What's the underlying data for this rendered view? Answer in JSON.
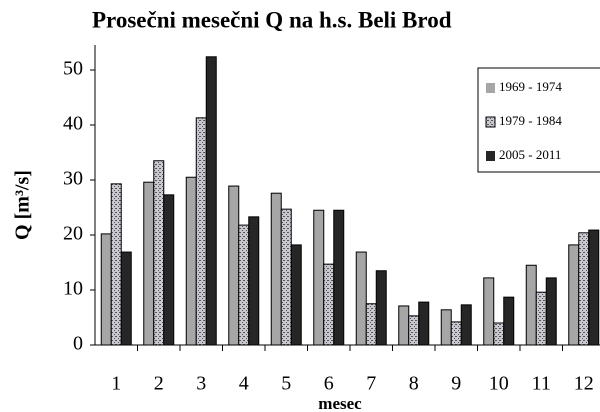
{
  "chart_data": {
    "type": "bar",
    "title": "Prosečni mesečni Q na h.s. Beli Brod",
    "x_label": "mesec",
    "y_label": "Q [m³/s]",
    "categories": [
      "1",
      "2",
      "3",
      "4",
      "5",
      "6",
      "7",
      "8",
      "9",
      "10",
      "11",
      "12"
    ],
    "series": [
      {
        "name": "1969 - 1974",
        "color": "#a6a6a6",
        "values": [
          20.2,
          29.6,
          30.5,
          28.9,
          27.6,
          24.5,
          16.9,
          7.1,
          6.4,
          12.2,
          14.5,
          18.2
        ]
      },
      {
        "name": "1979 - 1984",
        "color": "#c8c8d0",
        "pattern": "dotted",
        "values": [
          29.3,
          33.5,
          41.3,
          21.8,
          24.7,
          14.7,
          7.5,
          5.3,
          4.2,
          4.0,
          9.6,
          20.4
        ]
      },
      {
        "name": "2005 - 2011",
        "color": "#262626",
        "values": [
          16.9,
          27.3,
          52.4,
          23.3,
          18.2,
          24.5,
          13.5,
          7.8,
          7.3,
          8.7,
          12.2,
          20.9
        ]
      }
    ],
    "ylim": [
      0,
      55
    ],
    "yticks": [
      0,
      10,
      20,
      30,
      40,
      50
    ],
    "grid": false,
    "legend": "upper right"
  }
}
